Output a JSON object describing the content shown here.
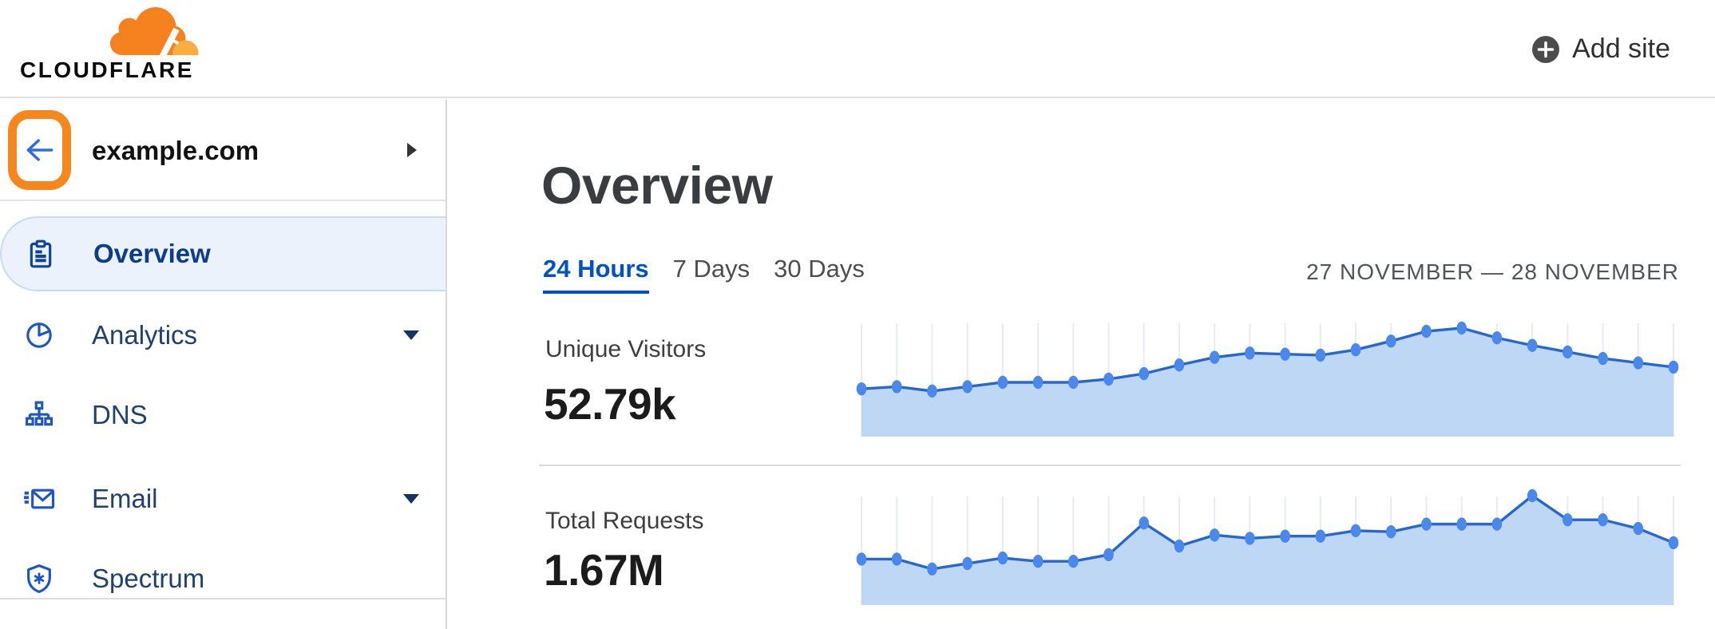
{
  "header": {
    "logo_text": "CLOUDFLARE",
    "add_site_label": "Add site"
  },
  "sidebar": {
    "site_name": "example.com",
    "items": [
      {
        "label": "Overview",
        "icon": "clipboard-icon",
        "active": true,
        "expandable": false
      },
      {
        "label": "Analytics",
        "icon": "pie-chart-icon",
        "active": false,
        "expandable": true
      },
      {
        "label": "DNS",
        "icon": "dns-tree-icon",
        "active": false,
        "expandable": false
      },
      {
        "label": "Email",
        "icon": "email-icon",
        "active": false,
        "expandable": true
      },
      {
        "label": "Spectrum",
        "icon": "shield-icon",
        "active": false,
        "expandable": false
      }
    ]
  },
  "main": {
    "title": "Overview",
    "tabs": [
      {
        "label": "24 Hours",
        "active": true
      },
      {
        "label": "7 Days",
        "active": false
      },
      {
        "label": "30 Days",
        "active": false
      }
    ],
    "date_range": "27 NOVEMBER — 28 NOVEMBER",
    "stats": [
      {
        "label": "Unique Visitors",
        "value": "52.79k"
      },
      {
        "label": "Total Requests",
        "value": "1.67M"
      }
    ]
  },
  "chart_data": [
    {
      "type": "area",
      "title": "Unique Visitors",
      "summary_value": "52.79k",
      "x_range": "24 hours, 27 November — 28 November",
      "points_count": 24,
      "values_relative": [
        44,
        46,
        42,
        46,
        50,
        50,
        50,
        53,
        58,
        66,
        73,
        77,
        76,
        75,
        80,
        88,
        97,
        100,
        91,
        84,
        78,
        72,
        68,
        64
      ],
      "y_scale": "relative height, 100 = series peak (no numeric axis shown)",
      "gridlines": "vertical, one per data point",
      "legend": "none"
    },
    {
      "type": "area",
      "title": "Total Requests",
      "summary_value": "1.67M",
      "x_range": "24 hours, 27 November — 28 November",
      "points_count": 24,
      "values_relative": [
        42,
        42,
        33,
        38,
        43,
        40,
        40,
        46,
        75,
        54,
        64,
        61,
        63,
        63,
        68,
        67,
        74,
        74,
        74,
        100,
        78,
        78,
        70,
        57
      ],
      "y_scale": "relative height, 100 = series peak (no numeric axis shown)",
      "gridlines": "vertical, one per data point",
      "legend": "none"
    }
  ],
  "colors": {
    "brand_orange": "#F6821F",
    "brand_orange_light": "#FBAD41",
    "annotation_highlight": "#F6861E",
    "link_blue": "#0051C3",
    "nav_active_bg": "#EBF2FC",
    "nav_active_border": "#C9DAF3",
    "nav_text": "#22406F",
    "nav_active_text": "#0D3C8B",
    "back_arrow_blue": "#2E6FD9",
    "chart_line": "#2767CE",
    "chart_fill": "#BDD7F4",
    "chart_dot": "#4A88EC",
    "chart_grid": "#E8ECF2"
  }
}
